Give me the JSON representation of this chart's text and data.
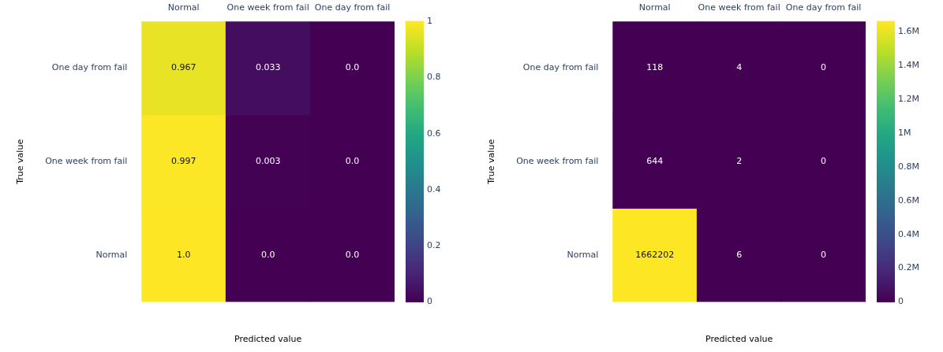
{
  "chart_data": [
    {
      "type": "heatmap",
      "xlabel": "Predicted value",
      "ylabel": "True value",
      "categories": [
        "Normal",
        "One week from fail",
        "One day from fail"
      ],
      "y_categories": [
        "One day from fail",
        "One week from fail",
        "Normal"
      ],
      "cells": [
        [
          0.967,
          0.033,
          0.0
        ],
        [
          0.997,
          0.003,
          0.0
        ],
        [
          1.0,
          0.0,
          0.0
        ]
      ],
      "cell_labels": [
        [
          "0.967",
          "0.033",
          "0.0"
        ],
        [
          "0.997",
          "0.003",
          "0.0"
        ],
        [
          "1.0",
          "0.0",
          "0.0"
        ]
      ],
      "clim": [
        0,
        1
      ],
      "cticks": [
        0,
        0.2,
        0.4,
        0.6,
        0.8,
        1
      ]
    },
    {
      "type": "heatmap",
      "xlabel": "Predicted value",
      "ylabel": "True value",
      "categories": [
        "Normal",
        "One week from fail",
        "One day from fail"
      ],
      "y_categories": [
        "One day from fail",
        "One week from fail",
        "Normal"
      ],
      "cells": [
        [
          118,
          4,
          0
        ],
        [
          644,
          2,
          0
        ],
        [
          1662202,
          6,
          0
        ]
      ],
      "data_labels": true,
      "clim": [
        0,
        1662202
      ],
      "cticks": [
        0,
        {
          "value": 200000,
          "label": "0.2M"
        },
        {
          "value": 400000,
          "label": "0.4M"
        },
        {
          "value": 600000,
          "label": "0.6M"
        },
        {
          "value": 800000,
          "label": "0.8M"
        },
        {
          "value": 1000000,
          "label": "1M"
        },
        {
          "value": 1200000,
          "label": "1.2M"
        },
        {
          "value": 1400000,
          "label": "1.4M"
        },
        {
          "value": 1600000,
          "label": "1.6M"
        }
      ]
    }
  ]
}
